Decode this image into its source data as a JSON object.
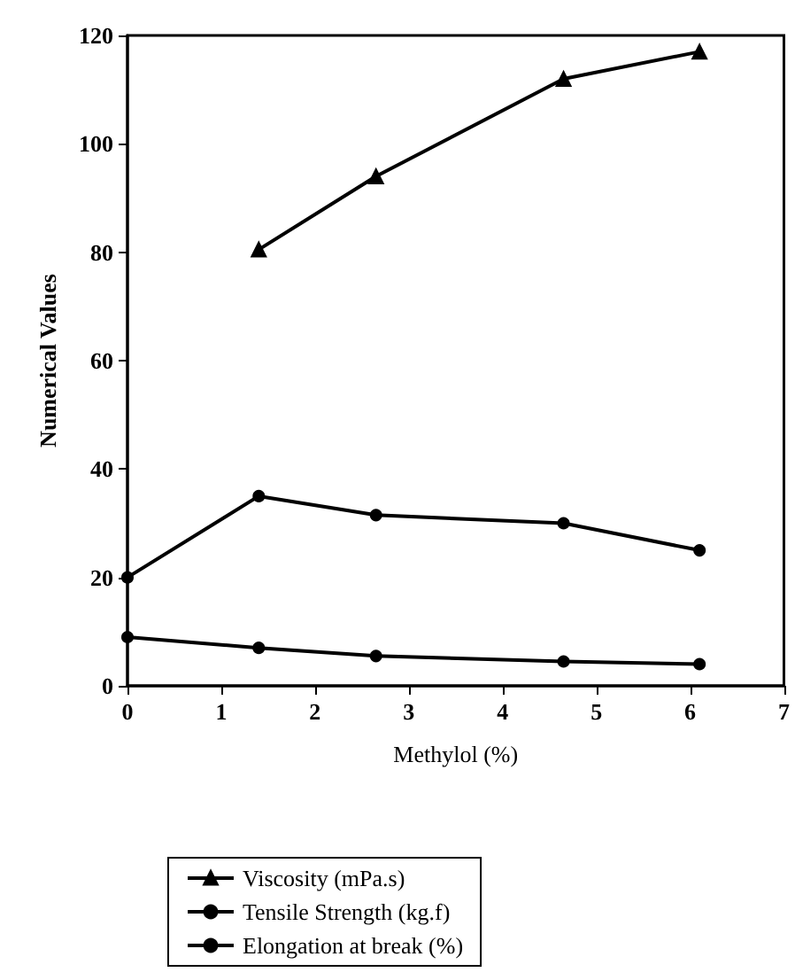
{
  "chart_data": {
    "type": "line",
    "xlabel": "Methylol (%)",
    "ylabel": "Numerical Values",
    "xlim": [
      0,
      7
    ],
    "xticks": [
      0,
      1,
      2,
      3,
      4,
      5,
      6,
      7
    ],
    "ylim": [
      0,
      120
    ],
    "yticks": [
      0,
      20,
      40,
      60,
      80,
      100,
      120
    ],
    "grid": false,
    "legend": "bottom",
    "series": [
      {
        "name": "Viscosity (mPa.s)",
        "color": "#000000",
        "marker": "triangle",
        "x": [
          1.4,
          2.65,
          4.65,
          6.1
        ],
        "values": [
          80.5,
          94,
          112,
          117
        ]
      },
      {
        "name": "Tensile Strength (kg.f)",
        "color": "#000000",
        "marker": "circle",
        "x": [
          0,
          1.4,
          2.65,
          4.65,
          6.1
        ],
        "values": [
          20,
          35,
          31.5,
          30,
          25
        ]
      },
      {
        "name": "Elongation at break (%)",
        "color": "#000000",
        "marker": "circle",
        "x": [
          0,
          1.4,
          2.65,
          4.65,
          6.1
        ],
        "values": [
          9,
          7,
          5.5,
          4.5,
          4
        ]
      }
    ]
  }
}
